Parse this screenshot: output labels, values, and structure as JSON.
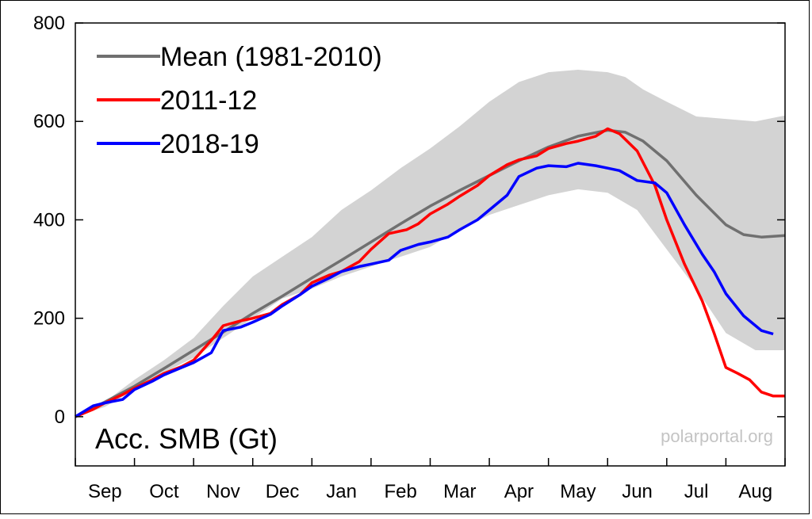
{
  "chart_data": {
    "type": "line",
    "title": "",
    "ylabel": "Acc. SMB (Gt)",
    "xlabel": "",
    "credit": "polarportal.org",
    "ylim": [
      -100,
      800
    ],
    "xlim": [
      0,
      12
    ],
    "yticks": [
      0,
      200,
      400,
      600,
      800
    ],
    "months": [
      "Sep",
      "Oct",
      "Nov",
      "Dec",
      "Jan",
      "Feb",
      "Mar",
      "Apr",
      "May",
      "Jun",
      "Jul",
      "Aug"
    ],
    "grid": false,
    "legend_position": "top-left",
    "band": {
      "color": "#d3d3d3",
      "upper": [
        [
          0,
          0
        ],
        [
          0.5,
          30
        ],
        [
          1,
          75
        ],
        [
          1.5,
          115
        ],
        [
          2,
          160
        ],
        [
          2.5,
          225
        ],
        [
          3,
          285
        ],
        [
          3.5,
          325
        ],
        [
          4,
          365
        ],
        [
          4.5,
          420
        ],
        [
          5,
          460
        ],
        [
          5.5,
          505
        ],
        [
          6,
          545
        ],
        [
          6.5,
          590
        ],
        [
          7,
          640
        ],
        [
          7.5,
          680
        ],
        [
          8,
          700
        ],
        [
          8.5,
          705
        ],
        [
          9,
          700
        ],
        [
          9.3,
          690
        ],
        [
          9.6,
          665
        ],
        [
          10,
          640
        ],
        [
          10.5,
          610
        ],
        [
          11,
          605
        ],
        [
          11.5,
          600
        ],
        [
          12,
          612
        ]
      ],
      "lower": [
        [
          0,
          0
        ],
        [
          0.5,
          20
        ],
        [
          1,
          55
        ],
        [
          1.5,
          90
        ],
        [
          2,
          120
        ],
        [
          2.5,
          160
        ],
        [
          3,
          200
        ],
        [
          3.5,
          240
        ],
        [
          4,
          260
        ],
        [
          4.5,
          285
        ],
        [
          5,
          305
        ],
        [
          5.5,
          325
        ],
        [
          6,
          345
        ],
        [
          6.5,
          380
        ],
        [
          7,
          410
        ],
        [
          7.5,
          430
        ],
        [
          8,
          450
        ],
        [
          8.5,
          462
        ],
        [
          9,
          455
        ],
        [
          9.5,
          420
        ],
        [
          10,
          340
        ],
        [
          10.5,
          260
        ],
        [
          11,
          170
        ],
        [
          11.5,
          135
        ],
        [
          12,
          135
        ]
      ]
    },
    "series": [
      {
        "name": "Mean (1981-2010)",
        "color": "#707070",
        "points": [
          [
            0,
            0
          ],
          [
            0.5,
            30
          ],
          [
            1,
            62
          ],
          [
            1.5,
            98
          ],
          [
            2,
            135
          ],
          [
            2.5,
            172
          ],
          [
            3,
            210
          ],
          [
            3.5,
            245
          ],
          [
            4,
            282
          ],
          [
            4.5,
            318
          ],
          [
            5,
            355
          ],
          [
            5.5,
            392
          ],
          [
            6,
            428
          ],
          [
            6.5,
            460
          ],
          [
            7,
            490
          ],
          [
            7.5,
            520
          ],
          [
            8,
            548
          ],
          [
            8.5,
            570
          ],
          [
            9,
            582
          ],
          [
            9.3,
            578
          ],
          [
            9.6,
            560
          ],
          [
            10,
            520
          ],
          [
            10.5,
            450
          ],
          [
            11,
            390
          ],
          [
            11.3,
            370
          ],
          [
            11.6,
            365
          ],
          [
            12,
            368
          ]
        ]
      },
      {
        "name": "2011-12",
        "color": "#ff0000",
        "points": [
          [
            0,
            0
          ],
          [
            0.3,
            15
          ],
          [
            0.5,
            28
          ],
          [
            0.8,
            45
          ],
          [
            1,
            58
          ],
          [
            1.3,
            75
          ],
          [
            1.5,
            88
          ],
          [
            1.8,
            102
          ],
          [
            2,
            115
          ],
          [
            2.3,
            155
          ],
          [
            2.5,
            185
          ],
          [
            2.8,
            195
          ],
          [
            3,
            200
          ],
          [
            3.3,
            210
          ],
          [
            3.5,
            228
          ],
          [
            3.8,
            248
          ],
          [
            4,
            272
          ],
          [
            4.3,
            288
          ],
          [
            4.5,
            295
          ],
          [
            4.8,
            315
          ],
          [
            5,
            340
          ],
          [
            5.3,
            372
          ],
          [
            5.6,
            380
          ],
          [
            5.8,
            392
          ],
          [
            6,
            412
          ],
          [
            6.3,
            432
          ],
          [
            6.5,
            448
          ],
          [
            6.8,
            470
          ],
          [
            7,
            490
          ],
          [
            7.3,
            512
          ],
          [
            7.5,
            522
          ],
          [
            7.8,
            530
          ],
          [
            8,
            545
          ],
          [
            8.3,
            555
          ],
          [
            8.5,
            560
          ],
          [
            8.8,
            570
          ],
          [
            9,
            585
          ],
          [
            9.2,
            575
          ],
          [
            9.5,
            540
          ],
          [
            9.8,
            470
          ],
          [
            10,
            400
          ],
          [
            10.3,
            310
          ],
          [
            10.6,
            235
          ],
          [
            10.8,
            170
          ],
          [
            11,
            100
          ],
          [
            11.2,
            88
          ],
          [
            11.4,
            75
          ],
          [
            11.6,
            50
          ],
          [
            11.8,
            42
          ],
          [
            12,
            42
          ]
        ]
      },
      {
        "name": "2018-19",
        "color": "#0000ff",
        "points": [
          [
            0,
            0
          ],
          [
            0.3,
            22
          ],
          [
            0.5,
            28
          ],
          [
            0.8,
            35
          ],
          [
            1,
            55
          ],
          [
            1.3,
            72
          ],
          [
            1.5,
            85
          ],
          [
            1.8,
            100
          ],
          [
            2,
            110
          ],
          [
            2.3,
            130
          ],
          [
            2.5,
            175
          ],
          [
            2.8,
            182
          ],
          [
            3,
            192
          ],
          [
            3.3,
            208
          ],
          [
            3.5,
            225
          ],
          [
            3.8,
            248
          ],
          [
            4,
            265
          ],
          [
            4.3,
            282
          ],
          [
            4.5,
            295
          ],
          [
            4.8,
            305
          ],
          [
            5,
            310
          ],
          [
            5.3,
            318
          ],
          [
            5.5,
            338
          ],
          [
            5.8,
            350
          ],
          [
            6,
            355
          ],
          [
            6.3,
            365
          ],
          [
            6.5,
            380
          ],
          [
            6.8,
            400
          ],
          [
            7,
            420
          ],
          [
            7.3,
            450
          ],
          [
            7.5,
            488
          ],
          [
            7.8,
            505
          ],
          [
            8,
            510
          ],
          [
            8.3,
            508
          ],
          [
            8.5,
            515
          ],
          [
            8.8,
            510
          ],
          [
            9,
            505
          ],
          [
            9.2,
            500
          ],
          [
            9.5,
            480
          ],
          [
            9.8,
            475
          ],
          [
            10,
            455
          ],
          [
            10.3,
            390
          ],
          [
            10.6,
            330
          ],
          [
            10.8,
            295
          ],
          [
            11,
            250
          ],
          [
            11.3,
            205
          ],
          [
            11.6,
            175
          ],
          [
            11.8,
            168
          ]
        ]
      }
    ]
  }
}
